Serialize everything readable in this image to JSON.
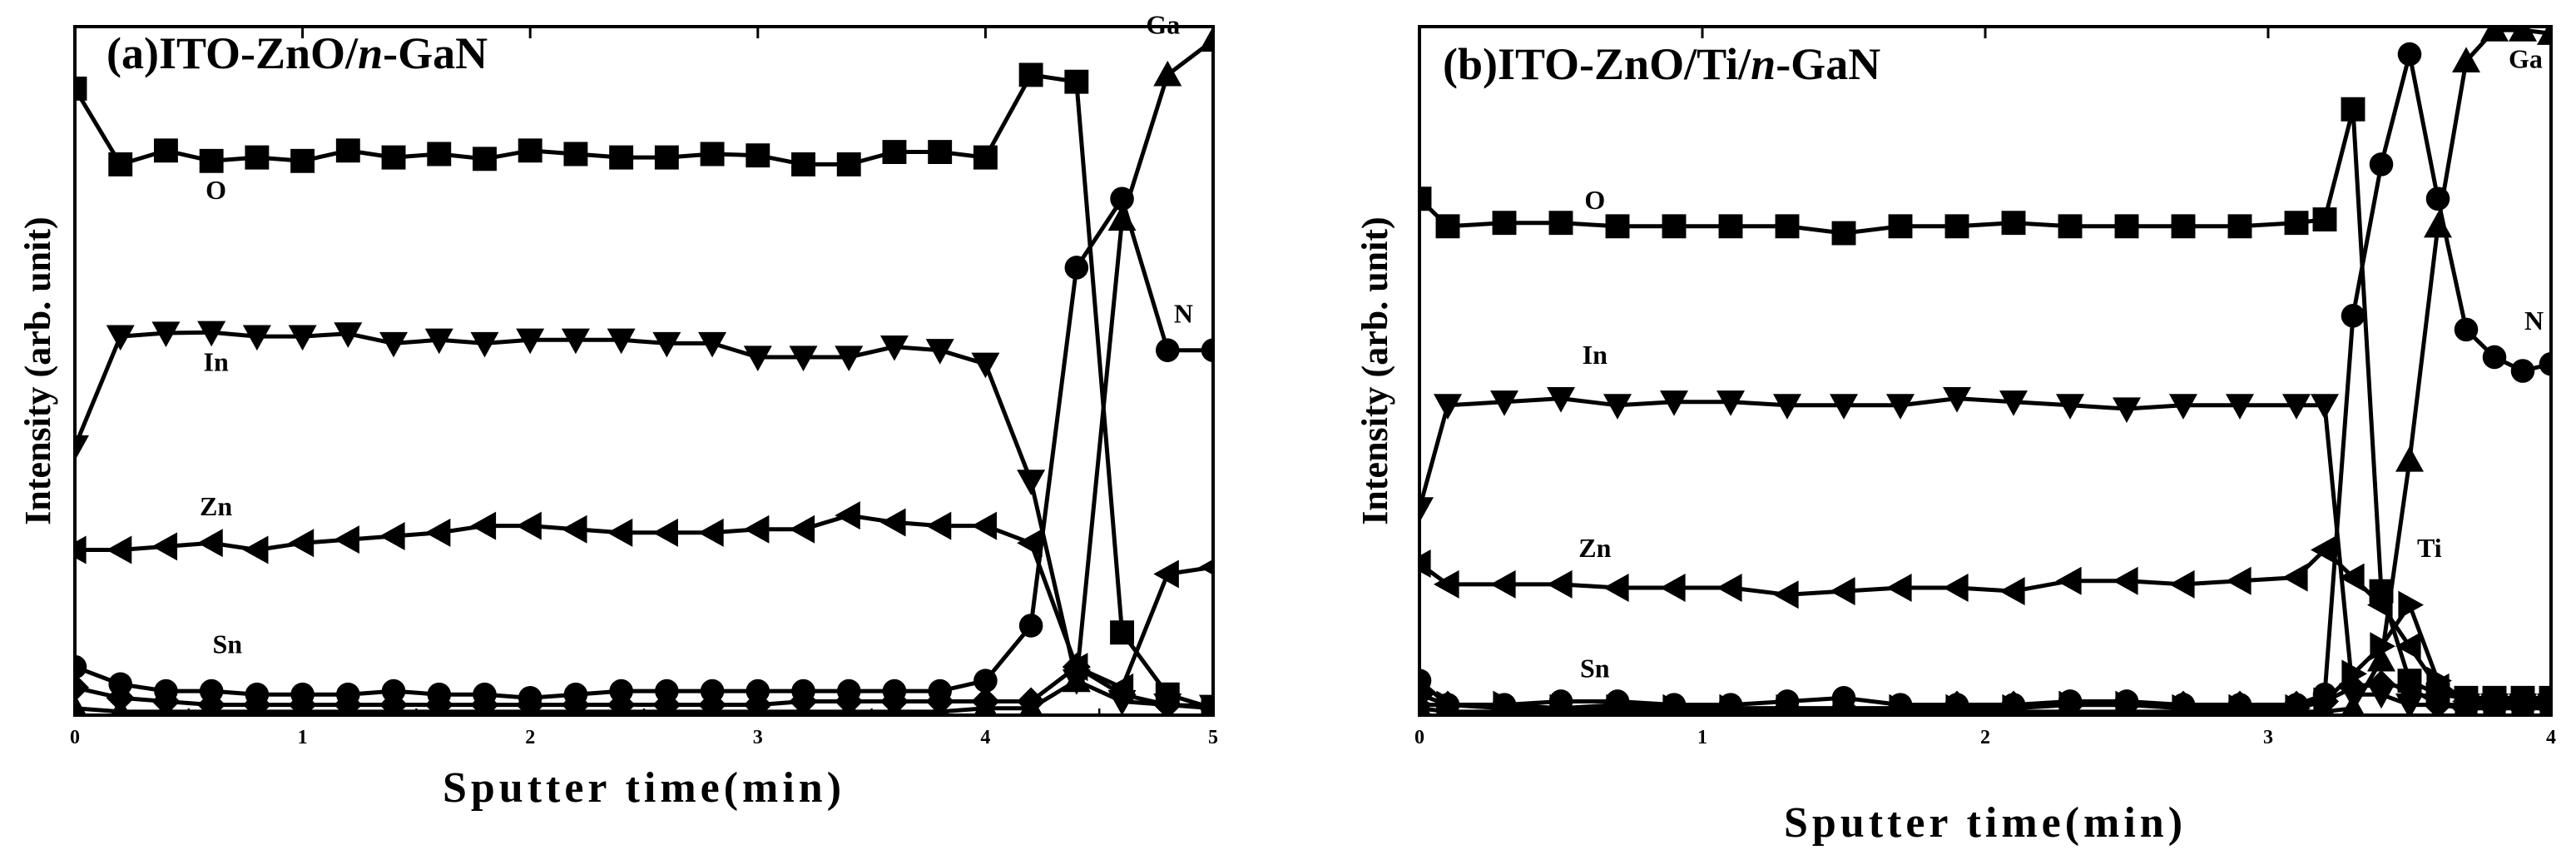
{
  "figure": {
    "panels": [
      {
        "title": "(a)ITO-ZnO/n-GaN",
        "title_parts": [
          "(a)ITO-ZnO/",
          "n",
          "-GaN"
        ],
        "xlabel": "Sputter time(min)",
        "ylabel": "Intensity (arb. unit)",
        "x_ticks": [
          "0",
          "1",
          "2",
          "3",
          "4",
          "5"
        ],
        "series_labels": [
          "O",
          "In",
          "Zn",
          "Sn",
          "Ga",
          "N"
        ]
      },
      {
        "title": "(b)ITO-ZnO/Ti/n-GaN",
        "title_parts": [
          "(b)ITO-ZnO/Ti/",
          "n",
          "-GaN"
        ],
        "xlabel": "Sputter time(min)",
        "ylabel": "Intensity (arb. unit)",
        "x_ticks": [
          "0",
          "1",
          "2",
          "3",
          "4"
        ],
        "series_labels": [
          "O",
          "In",
          "Zn",
          "Sn",
          "Ti",
          "Ga",
          "N"
        ]
      }
    ]
  },
  "chart_data": [
    {
      "type": "line",
      "title": "(a)ITO-ZnO/n-GaN",
      "xlabel": "Sputter time(min)",
      "ylabel": "Intensity (arb. unit)",
      "xlim": [
        0,
        5
      ],
      "ylim": [
        0,
        100
      ],
      "x_ticks": [
        0,
        1,
        2,
        3,
        4,
        5
      ],
      "series": [
        {
          "name": "O",
          "marker": "square",
          "x": [
            0,
            0.2,
            0.4,
            0.6,
            0.8,
            1.0,
            1.2,
            1.4,
            1.6,
            1.8,
            2.0,
            2.2,
            2.4,
            2.6,
            2.8,
            3.0,
            3.2,
            3.4,
            3.6,
            3.8,
            4.0,
            4.2,
            4.4,
            4.6,
            4.8,
            5.0
          ],
          "y": [
            91,
            80,
            82,
            80.5,
            81,
            80.5,
            82,
            81,
            81.5,
            80.8,
            82,
            81.5,
            81,
            81,
            81.5,
            81.3,
            80,
            80,
            81.8,
            81.8,
            81,
            93,
            92,
            12,
            3,
            1
          ]
        },
        {
          "name": "In",
          "marker": "triangle-down",
          "x": [
            0,
            0.2,
            0.4,
            0.6,
            0.8,
            1.0,
            1.2,
            1.4,
            1.6,
            1.8,
            2.0,
            2.2,
            2.4,
            2.6,
            2.8,
            3.0,
            3.2,
            3.4,
            3.6,
            3.8,
            4.0,
            4.2,
            4.4,
            4.6,
            4.8,
            5.0
          ],
          "y": [
            39,
            55,
            55.5,
            55.6,
            55,
            55,
            55.4,
            54,
            54.5,
            54,
            54.5,
            54.5,
            54.5,
            54,
            54,
            52,
            52,
            52,
            53.5,
            53,
            51,
            34,
            5,
            2,
            1.5,
            1.3
          ]
        },
        {
          "name": "Zn",
          "marker": "triangle-left",
          "x": [
            0,
            0.2,
            0.4,
            0.6,
            0.8,
            1.0,
            1.2,
            1.4,
            1.6,
            1.8,
            2.0,
            2.2,
            2.4,
            2.6,
            2.8,
            3.0,
            3.2,
            3.4,
            3.6,
            3.8,
            4.0,
            4.2,
            4.4,
            4.6,
            4.8,
            5.0
          ],
          "y": [
            24,
            24,
            24.5,
            25,
            24,
            25,
            25.5,
            26,
            26.5,
            27.5,
            27.5,
            27,
            26.5,
            26.5,
            26.5,
            27,
            27,
            29,
            28,
            27.5,
            27.5,
            25,
            7,
            4,
            20.5,
            21.5
          ]
        },
        {
          "name": "Sn",
          "marker": "circle",
          "x": [
            0,
            0.2,
            0.4,
            0.6,
            0.8,
            1.0,
            1.2,
            1.4,
            1.6,
            1.8,
            2.0,
            2.2,
            2.4,
            2.6,
            2.8,
            3.0,
            3.2,
            3.4,
            3.6,
            3.8,
            4.0,
            4.2,
            4.4,
            4.6,
            4.8,
            5.0
          ],
          "y": [
            7,
            4.5,
            3.5,
            3.5,
            3,
            3,
            3,
            3.5,
            3,
            3,
            2.5,
            3,
            3.5,
            3.5,
            3.5,
            3.5,
            3.5,
            3.5,
            3.5,
            3.5,
            5,
            13,
            65,
            75,
            53,
            53
          ]
        },
        {
          "name": "Ga",
          "marker": "triangle-up",
          "x": [
            0,
            0.2,
            0.4,
            0.6,
            0.8,
            1.0,
            1.2,
            1.4,
            1.6,
            1.8,
            2.0,
            2.2,
            2.4,
            2.6,
            2.8,
            3.0,
            3.2,
            3.4,
            3.6,
            3.8,
            4.0,
            4.2,
            4.4,
            4.6,
            4.8,
            5.0
          ],
          "y": [
            1,
            0.5,
            0.5,
            0.5,
            0.5,
            0.5,
            0.5,
            0.5,
            0.5,
            0.5,
            0.5,
            0.5,
            0.5,
            0.5,
            0.5,
            0.5,
            0.5,
            0.5,
            0.5,
            0.5,
            1,
            1,
            5,
            72,
            93,
            98
          ]
        },
        {
          "name": "N",
          "marker": "diamond",
          "x": [
            0,
            0.2,
            0.4,
            0.6,
            0.8,
            1.0,
            1.2,
            1.4,
            1.6,
            1.8,
            2.0,
            2.2,
            2.4,
            2.6,
            2.8,
            3.0,
            3.2,
            3.4,
            3.6,
            3.8,
            4.0,
            4.2,
            4.4,
            4.6,
            4.8,
            5.0
          ],
          "y": [
            4,
            2.5,
            2,
            1.5,
            1.5,
            1.5,
            1.5,
            1.5,
            1.5,
            1.5,
            1.5,
            1.5,
            1.5,
            1.5,
            1.5,
            1.5,
            2,
            2,
            2,
            2,
            2,
            2,
            7,
            3,
            1.5,
            1
          ]
        }
      ],
      "labels": [
        {
          "text": "O",
          "x": 0.62,
          "y": 75
        },
        {
          "text": "In",
          "x": 0.62,
          "y": 50
        },
        {
          "text": "Zn",
          "x": 0.62,
          "y": 29
        },
        {
          "text": "Sn",
          "x": 0.67,
          "y": 9
        },
        {
          "text": "Ga",
          "x": 4.78,
          "y": 99
        },
        {
          "text": "N",
          "x": 4.87,
          "y": 57
        }
      ]
    },
    {
      "type": "line",
      "title": "(b)ITO-ZnO/Ti/n-GaN",
      "xlabel": "Sputter time(min)",
      "ylabel": "Intensity (arb. unit)",
      "xlim": [
        0,
        4
      ],
      "ylim": [
        0,
        100
      ],
      "x_ticks": [
        0,
        1,
        2,
        3,
        4
      ],
      "series": [
        {
          "name": "O",
          "marker": "square",
          "x": [
            0,
            0.1,
            0.3,
            0.5,
            0.7,
            0.9,
            1.1,
            1.3,
            1.5,
            1.7,
            1.9,
            2.1,
            2.3,
            2.5,
            2.7,
            2.9,
            3.1,
            3.2,
            3.3,
            3.4,
            3.5,
            3.6,
            3.7,
            3.8,
            3.9,
            4.0
          ],
          "y": [
            75,
            71,
            71.5,
            71.5,
            71,
            71,
            71,
            71,
            70,
            71,
            71,
            71.5,
            71,
            71,
            71,
            71,
            71.5,
            72,
            88,
            18,
            5,
            3,
            2.5,
            2.5,
            2.5,
            2.5
          ]
        },
        {
          "name": "In",
          "marker": "triangle-down",
          "x": [
            0,
            0.1,
            0.3,
            0.5,
            0.7,
            0.9,
            1.1,
            1.3,
            1.5,
            1.7,
            1.9,
            2.1,
            2.3,
            2.5,
            2.7,
            2.9,
            3.1,
            3.2,
            3.3,
            3.4,
            3.5,
            3.6,
            3.7,
            3.8,
            3.9,
            4.0
          ],
          "y": [
            30,
            45,
            45.5,
            46,
            45,
            45.5,
            45.5,
            45,
            45,
            45,
            46,
            45.5,
            45,
            44.5,
            45,
            45,
            45,
            45,
            3,
            3,
            1.5,
            1.5,
            1.5,
            1.5,
            1.5,
            1.5
          ]
        },
        {
          "name": "Zn",
          "marker": "triangle-left",
          "x": [
            0,
            0.1,
            0.3,
            0.5,
            0.7,
            0.9,
            1.1,
            1.3,
            1.5,
            1.7,
            1.9,
            2.1,
            2.3,
            2.5,
            2.7,
            2.9,
            3.1,
            3.2,
            3.3,
            3.4,
            3.5,
            3.6,
            3.7,
            3.8,
            3.9,
            4.0
          ],
          "y": [
            22,
            19,
            19,
            19,
            18.5,
            18.5,
            18.5,
            17.5,
            18,
            18.5,
            18.5,
            18,
            19.5,
            19.5,
            19,
            19.5,
            20,
            24,
            20,
            16,
            10,
            4,
            2,
            2,
            2,
            2
          ]
        },
        {
          "name": "Sn",
          "marker": "circle",
          "x": [
            0,
            0.1,
            0.3,
            0.5,
            0.7,
            0.9,
            1.1,
            1.3,
            1.5,
            1.7,
            1.9,
            2.1,
            2.3,
            2.5,
            2.7,
            2.9,
            3.1,
            3.2,
            3.3,
            3.4,
            3.5,
            3.6,
            3.7,
            3.8,
            3.9,
            4.0
          ],
          "y": [
            5,
            1.5,
            1.5,
            2,
            2,
            1.5,
            1.5,
            2,
            2.5,
            1.5,
            1.5,
            1.5,
            2,
            2,
            1.5,
            1.5,
            1.5,
            3,
            58,
            80,
            96,
            75,
            56,
            52,
            50,
            51
          ]
        },
        {
          "name": "Ti",
          "marker": "triangle-right",
          "x": [
            0,
            0.1,
            0.3,
            0.5,
            0.7,
            0.9,
            1.1,
            1.3,
            1.5,
            1.7,
            1.9,
            2.1,
            2.3,
            2.5,
            2.7,
            2.9,
            3.1,
            3.2,
            3.3,
            3.4,
            3.5,
            3.6,
            3.7,
            3.8,
            3.9,
            4.0
          ],
          "y": [
            1.5,
            1.5,
            1.5,
            1,
            1,
            1,
            1,
            1,
            1,
            1,
            1,
            1,
            1.5,
            1.5,
            1,
            1,
            1,
            2,
            6,
            10,
            16,
            5,
            2,
            1.5,
            1.5,
            1.5
          ]
        },
        {
          "name": "Ga",
          "marker": "triangle-up",
          "x": [
            0,
            0.1,
            0.3,
            0.5,
            0.7,
            0.9,
            1.1,
            1.3,
            1.5,
            1.7,
            1.9,
            2.1,
            2.3,
            2.5,
            2.7,
            2.9,
            3.1,
            3.2,
            3.3,
            3.4,
            3.5,
            3.6,
            3.7,
            3.8,
            3.9,
            4.0
          ],
          "y": [
            1,
            0.5,
            0.5,
            0.5,
            0.5,
            0.5,
            0.5,
            0.5,
            0.5,
            0.5,
            0.5,
            0.5,
            0.5,
            0.5,
            0.5,
            0.5,
            0.5,
            0.5,
            1,
            8,
            37,
            71,
            95,
            99.5,
            99.5,
            99
          ]
        },
        {
          "name": "N",
          "marker": "diamond",
          "x": [
            0,
            0.1,
            0.3,
            0.5,
            0.7,
            0.9,
            1.1,
            1.3,
            1.5,
            1.7,
            1.9,
            2.1,
            2.3,
            2.5,
            2.7,
            2.9,
            3.1,
            3.2,
            3.3,
            3.4,
            3.5,
            3.6,
            3.7,
            3.8,
            3.9,
            4.0
          ],
          "y": [
            3,
            1.5,
            1,
            1,
            1.5,
            1,
            1,
            1,
            1,
            1,
            1.5,
            1.5,
            1.5,
            1.5,
            1.5,
            1.5,
            1.5,
            2,
            4,
            4.5,
            4,
            1.5,
            1,
            1,
            1,
            1
          ]
        }
      ],
      "labels": [
        {
          "text": "O",
          "x": 0.62,
          "y": 73.5
        },
        {
          "text": "In",
          "x": 0.62,
          "y": 51
        },
        {
          "text": "Zn",
          "x": 0.62,
          "y": 23
        },
        {
          "text": "Sn",
          "x": 0.62,
          "y": 5.5
        },
        {
          "text": "Ti",
          "x": 3.57,
          "y": 23
        },
        {
          "text": "Ga",
          "x": 3.91,
          "y": 94
        },
        {
          "text": "N",
          "x": 3.94,
          "y": 56
        }
      ]
    }
  ]
}
